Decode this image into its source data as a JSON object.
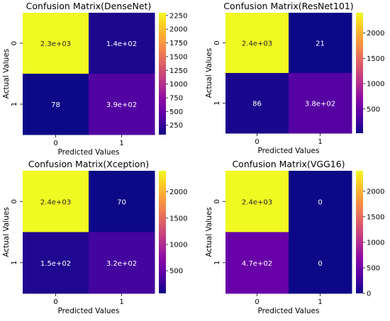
{
  "chart_data": [
    {
      "type": "heatmap",
      "title": "Confusion Matrix(DenseNet)",
      "xlabel": "Predicted Values",
      "ylabel": "Actual Values",
      "x_ticks": [
        "0",
        "1"
      ],
      "y_ticks": [
        "0",
        "1"
      ],
      "values": [
        [
          2300,
          140
        ],
        [
          78,
          390
        ]
      ],
      "annotations": [
        [
          "2.3e+03",
          "1.4e+02"
        ],
        [
          "78",
          "3.9e+02"
        ]
      ],
      "colormap": "plasma",
      "vmin": 78,
      "vmax": 2300,
      "colorbar_ticks": [
        250,
        500,
        750,
        1000,
        1250,
        1500,
        1750,
        2000,
        2250
      ]
    },
    {
      "type": "heatmap",
      "title": "Confusion Matrix(ResNet101)",
      "xlabel": "Predicted Values",
      "ylabel": "Actual Values",
      "x_ticks": [
        "0",
        "1"
      ],
      "y_ticks": [
        "0",
        "1"
      ],
      "values": [
        [
          2400,
          21
        ],
        [
          86,
          380
        ]
      ],
      "annotations": [
        [
          "2.4e+03",
          "21"
        ],
        [
          "86",
          "3.8e+02"
        ]
      ],
      "colormap": "plasma",
      "vmin": 21,
      "vmax": 2400,
      "colorbar_ticks": [
        500,
        1000,
        1500,
        2000
      ]
    },
    {
      "type": "heatmap",
      "title": "Confusion Matrix(Xception)",
      "xlabel": "Predicted Values",
      "ylabel": "Actual Values",
      "x_ticks": [
        "0",
        "1"
      ],
      "y_ticks": [
        "0",
        "1"
      ],
      "values": [
        [
          2400,
          70
        ],
        [
          150,
          320
        ]
      ],
      "annotations": [
        [
          "2.4e+03",
          "70"
        ],
        [
          "1.5e+02",
          "3.2e+02"
        ]
      ],
      "colormap": "plasma",
      "vmin": 70,
      "vmax": 2400,
      "colorbar_ticks": [
        500,
        1000,
        1500,
        2000
      ]
    },
    {
      "type": "heatmap",
      "title": "Confusion Matrix(VGG16)",
      "xlabel": "Predicted Values",
      "ylabel": "Actual Values",
      "x_ticks": [
        "0",
        "1"
      ],
      "y_ticks": [
        "0",
        "1"
      ],
      "values": [
        [
          2400,
          0
        ],
        [
          470,
          0
        ]
      ],
      "annotations": [
        [
          "2.4e+03",
          "0"
        ],
        [
          "4.7e+02",
          "0"
        ]
      ],
      "colormap": "plasma",
      "vmin": 0,
      "vmax": 2400,
      "colorbar_ticks": [
        0,
        500,
        1000,
        1500,
        2000
      ]
    }
  ]
}
